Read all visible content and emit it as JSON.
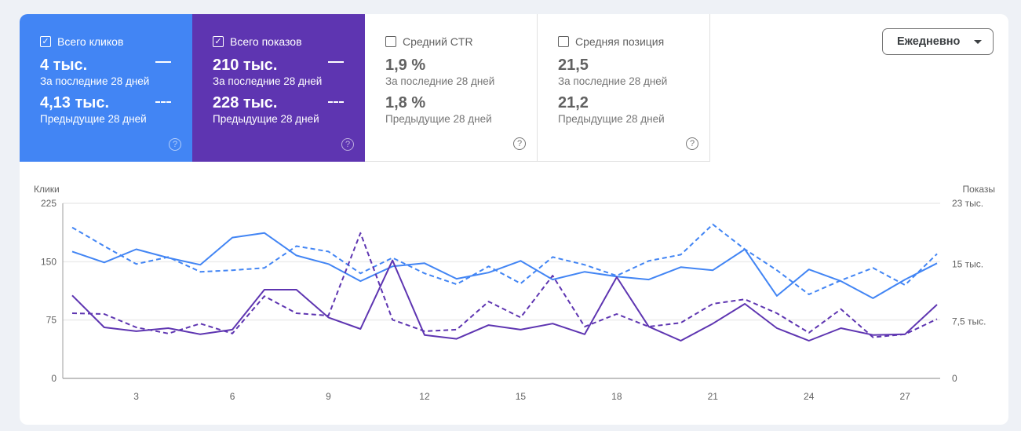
{
  "metrics": [
    {
      "label": "Всего кликов",
      "checked": true,
      "current": "4 тыс.",
      "current_label": "За последние 28 дней",
      "previous": "4,13 тыс.",
      "previous_label": "Предыдущие 28 дней",
      "color": "#4285f4"
    },
    {
      "label": "Всего показов",
      "checked": true,
      "current": "210 тыс.",
      "current_label": "За последние 28 дней",
      "previous": "228 тыс.",
      "previous_label": "Предыдущие 28 дней",
      "color": "#5e35b1"
    },
    {
      "label": "Средний CTR",
      "checked": false,
      "current": "1,9 %",
      "current_label": "За последние 28 дней",
      "previous": "1,8 %",
      "previous_label": "Предыдущие 28 дней"
    },
    {
      "label": "Средняя позиция",
      "checked": false,
      "current": "21,5",
      "current_label": "За последние 28 дней",
      "previous": "21,2",
      "previous_label": "Предыдущие 28 дней"
    }
  ],
  "granularity": {
    "selected": "Ежедневно"
  },
  "chart_data": {
    "type": "line",
    "x": [
      1,
      2,
      3,
      4,
      5,
      6,
      7,
      8,
      9,
      10,
      11,
      12,
      13,
      14,
      15,
      16,
      17,
      18,
      19,
      20,
      21,
      22,
      23,
      24,
      25,
      26,
      27,
      28
    ],
    "x_ticks": [
      "3",
      "6",
      "9",
      "12",
      "15",
      "18",
      "21",
      "24",
      "27"
    ],
    "x_tick_values": [
      3,
      6,
      9,
      12,
      15,
      18,
      21,
      24,
      27
    ],
    "left_axis": {
      "label": "Клики",
      "range": [
        0,
        225
      ],
      "ticks": [
        0,
        75,
        150,
        225
      ],
      "tick_labels": [
        "0",
        "75",
        "150",
        "225"
      ]
    },
    "right_axis": {
      "label": "Показы",
      "range": [
        0,
        23000
      ],
      "ticks": [
        0,
        7500,
        15000,
        23000
      ],
      "tick_labels": [
        "0",
        "7,5 тыс.",
        "15 тыс.",
        "23 тыс."
      ]
    },
    "grid": true,
    "series": [
      {
        "metric": "clicks",
        "period": "current",
        "axis": "left",
        "color": "#4285f4",
        "dashed": false,
        "values": [
          163,
          149,
          166,
          155,
          146,
          181,
          187,
          158,
          147,
          125,
          144,
          148,
          128,
          136,
          151,
          127,
          137,
          131,
          127,
          143,
          139,
          166,
          106,
          140,
          125,
          103,
          127,
          148
        ]
      },
      {
        "metric": "clicks",
        "period": "previous",
        "axis": "left",
        "color": "#4285f4",
        "dashed": true,
        "values": [
          194,
          170,
          147,
          156,
          137,
          139,
          142,
          170,
          163,
          135,
          155,
          135,
          121,
          144,
          122,
          156,
          146,
          132,
          151,
          159,
          198,
          166,
          139,
          108,
          126,
          142,
          120,
          160
        ]
      },
      {
        "metric": "impressions",
        "period": "current",
        "axis": "right",
        "color": "#5e35b1",
        "dashed": false,
        "values": [
          10900,
          6700,
          6200,
          6600,
          5800,
          6400,
          11650,
          11650,
          8000,
          6500,
          15500,
          5700,
          5200,
          7000,
          6400,
          7200,
          5800,
          13300,
          6800,
          4950,
          7200,
          9800,
          6600,
          4950,
          6600,
          5700,
          5800,
          9700
        ]
      },
      {
        "metric": "impressions",
        "period": "previous",
        "axis": "right",
        "color": "#5e35b1",
        "dashed": true,
        "values": [
          8560,
          8460,
          6700,
          5900,
          7200,
          5900,
          10800,
          8560,
          8250,
          19100,
          7700,
          6200,
          6400,
          10100,
          8000,
          13500,
          6800,
          8460,
          6800,
          7300,
          9800,
          10400,
          8560,
          6000,
          9100,
          5400,
          5800,
          7800
        ]
      }
    ]
  }
}
